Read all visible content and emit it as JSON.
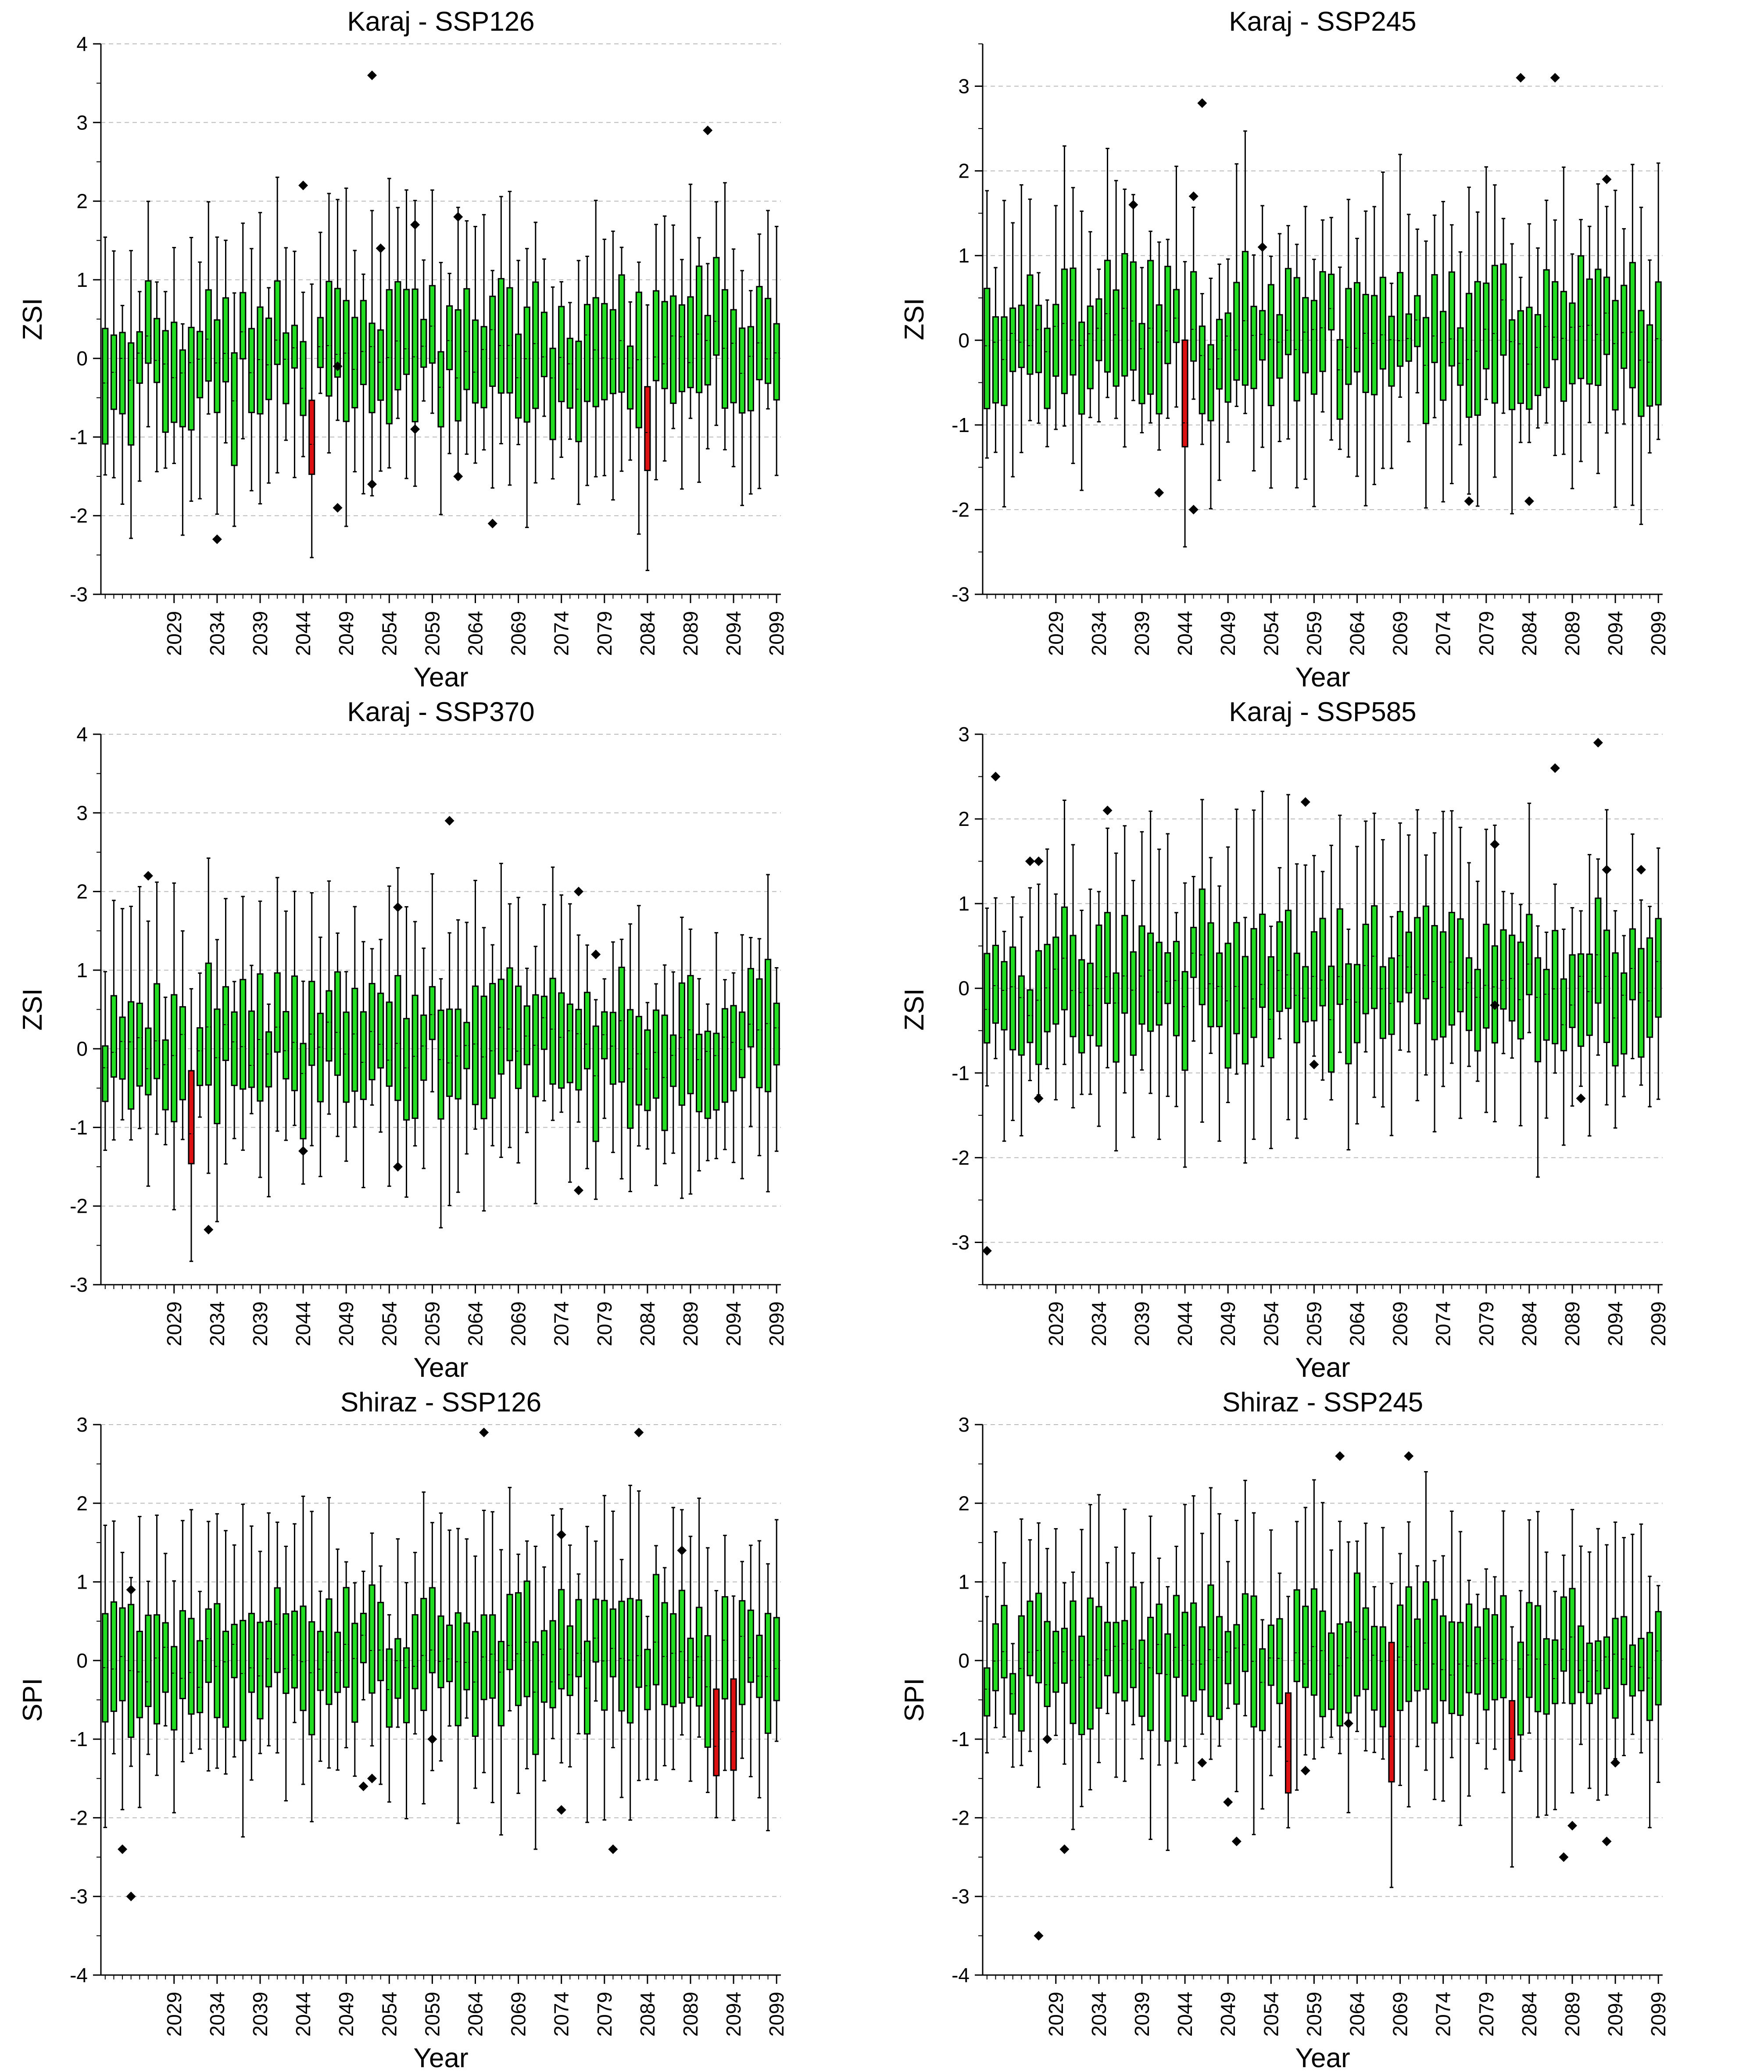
{
  "figure": {
    "panel_count": 6,
    "layout": "3 rows x 2 columns of box-and-whisker charts, one box per year"
  },
  "chart_data": [
    {
      "type": "box",
      "id": "karaj-ssp126",
      "title": "Karaj - SSP126",
      "xlabel": "Year",
      "ylabel": "ZSI",
      "ylim": [
        -3,
        4
      ],
      "yticks": [
        -3,
        -2,
        -1,
        0,
        1,
        2,
        3,
        4
      ],
      "x_range": [
        2021,
        2099
      ],
      "xticks": [
        "2029",
        "2034",
        "2039",
        "2044",
        "2049",
        "2054",
        "2059",
        "2064",
        "2069",
        "2074",
        "2079",
        "2084",
        "2089",
        "2094",
        "2099"
      ],
      "grid": "horizontal dashed",
      "box_color": "#22dd22",
      "highlight_color": "#dd1111",
      "highlight_years": [
        2045,
        2084
      ],
      "outliers": [
        [
          2034,
          -2.3
        ],
        [
          2044,
          2.2
        ],
        [
          2048,
          -0.1
        ],
        [
          2048,
          -1.9
        ],
        [
          2052,
          3.6
        ],
        [
          2052,
          -1.6
        ],
        [
          2053,
          1.4
        ],
        [
          2057,
          -0.9
        ],
        [
          2057,
          1.7
        ],
        [
          2062,
          1.8
        ],
        [
          2062,
          -1.5
        ],
        [
          2066,
          -2.1
        ],
        [
          2091,
          2.9
        ]
      ],
      "series_profile": {
        "seed": 11,
        "mean": 0.02,
        "spread": 0.62
      }
    },
    {
      "type": "box",
      "id": "karaj-ssp245",
      "title": "Karaj - SSP245",
      "xlabel": "Year",
      "ylabel": "ZSI",
      "ylim": [
        -3,
        3.5
      ],
      "yticks": [
        -3,
        -2,
        -1,
        0,
        1,
        2,
        3
      ],
      "x_range": [
        2021,
        2099
      ],
      "xticks": [
        "2029",
        "2034",
        "2039",
        "2044",
        "2049",
        "2054",
        "2059",
        "2064",
        "2069",
        "2074",
        "2079",
        "2084",
        "2089",
        "2094",
        "2099"
      ],
      "grid": "horizontal dashed",
      "box_color": "#22dd22",
      "highlight_color": "#dd1111",
      "highlight_years": [
        2044
      ],
      "outliers": [
        [
          2038,
          1.6
        ],
        [
          2041,
          -1.8
        ],
        [
          2046,
          2.8
        ],
        [
          2045,
          1.7
        ],
        [
          2045,
          -2.0
        ],
        [
          2053,
          1.1
        ],
        [
          2077,
          -1.9
        ],
        [
          2083,
          3.1
        ],
        [
          2084,
          -1.9
        ],
        [
          2087,
          3.1
        ],
        [
          2093,
          1.9
        ]
      ],
      "series_profile": {
        "seed": 23,
        "mean": 0.03,
        "spread": 0.6
      }
    },
    {
      "type": "box",
      "id": "karaj-ssp370",
      "title": "Karaj - SSP370",
      "xlabel": "Year",
      "ylabel": "ZSI",
      "ylim": [
        -3,
        4
      ],
      "yticks": [
        -3,
        -2,
        -1,
        0,
        1,
        2,
        3,
        4
      ],
      "x_range": [
        2021,
        2099
      ],
      "xticks": [
        "2029",
        "2034",
        "2039",
        "2044",
        "2049",
        "2054",
        "2059",
        "2064",
        "2069",
        "2074",
        "2079",
        "2084",
        "2089",
        "2094",
        "2099"
      ],
      "grid": "horizontal dashed",
      "box_color": "#22dd22",
      "highlight_color": "#dd1111",
      "highlight_years": [
        2031
      ],
      "outliers": [
        [
          2026,
          2.2
        ],
        [
          2033,
          -2.3
        ],
        [
          2044,
          -1.3
        ],
        [
          2055,
          1.8
        ],
        [
          2055,
          -1.5
        ],
        [
          2061,
          2.9
        ],
        [
          2076,
          2.0
        ],
        [
          2076,
          -1.8
        ],
        [
          2078,
          1.2
        ]
      ],
      "series_profile": {
        "seed": 37,
        "mean": 0.05,
        "spread": 0.62
      }
    },
    {
      "type": "box",
      "id": "karaj-ssp585",
      "title": "Karaj - SSP585",
      "xlabel": "Year",
      "ylabel": "ZSI",
      "ylim": [
        -3.5,
        3
      ],
      "yticks": [
        -3,
        -2,
        -1,
        0,
        1,
        2,
        3
      ],
      "x_range": [
        2021,
        2099
      ],
      "xticks": [
        "2029",
        "2034",
        "2039",
        "2044",
        "2049",
        "2054",
        "2059",
        "2064",
        "2069",
        "2074",
        "2079",
        "2084",
        "2089",
        "2094",
        "2099"
      ],
      "grid": "horizontal dashed",
      "box_color": "#22dd22",
      "highlight_color": "#dd1111",
      "highlight_years": [],
      "outliers": [
        [
          2021,
          -3.1
        ],
        [
          2022,
          2.5
        ],
        [
          2026,
          1.5
        ],
        [
          2027,
          1.5
        ],
        [
          2027,
          -1.3
        ],
        [
          2035,
          2.1
        ],
        [
          2058,
          2.2
        ],
        [
          2059,
          -0.9
        ],
        [
          2080,
          1.7
        ],
        [
          2080,
          -0.2
        ],
        [
          2087,
          2.6
        ],
        [
          2090,
          -1.3
        ],
        [
          2092,
          2.9
        ],
        [
          2093,
          1.4
        ],
        [
          2097,
          1.4
        ]
      ],
      "series_profile": {
        "seed": 53,
        "mean": 0.04,
        "spread": 0.58
      }
    },
    {
      "type": "box",
      "id": "shiraz-ssp126",
      "title": "Shiraz - SSP126",
      "xlabel": "Year",
      "ylabel": "SPI",
      "ylim": [
        -4,
        3
      ],
      "yticks": [
        -4,
        -3,
        -2,
        -1,
        0,
        1,
        2,
        3
      ],
      "x_range": [
        2021,
        2099
      ],
      "xticks": [
        "2029",
        "2034",
        "2039",
        "2044",
        "2049",
        "2054",
        "2059",
        "2064",
        "2069",
        "2074",
        "2079",
        "2084",
        "2089",
        "2094",
        "2099"
      ],
      "grid": "horizontal dashed",
      "box_color": "#22dd22",
      "highlight_color": "#dd1111",
      "highlight_years": [
        2092,
        2094
      ],
      "outliers": [
        [
          2023,
          -2.4
        ],
        [
          2024,
          -3.0
        ],
        [
          2024,
          0.9
        ],
        [
          2051,
          -1.6
        ],
        [
          2052,
          -1.5
        ],
        [
          2059,
          -1.0
        ],
        [
          2065,
          2.9
        ],
        [
          2074,
          1.6
        ],
        [
          2074,
          -1.9
        ],
        [
          2080,
          -2.4
        ],
        [
          2083,
          2.9
        ],
        [
          2088,
          1.4
        ]
      ],
      "series_profile": {
        "seed": 71,
        "mean": 0.0,
        "spread": 0.62
      }
    },
    {
      "type": "box",
      "id": "shiraz-ssp245",
      "title": "Shiraz - SSP245",
      "xlabel": "Year",
      "ylabel": "SPI",
      "ylim": [
        -4,
        3
      ],
      "yticks": [
        -4,
        -3,
        -2,
        -1,
        0,
        1,
        2,
        3
      ],
      "x_range": [
        2021,
        2099
      ],
      "xticks": [
        "2029",
        "2034",
        "2039",
        "2044",
        "2049",
        "2054",
        "2059",
        "2064",
        "2069",
        "2074",
        "2079",
        "2084",
        "2089",
        "2094",
        "2099"
      ],
      "grid": "horizontal dashed",
      "box_color": "#22dd22",
      "highlight_color": "#dd1111",
      "highlight_years": [
        2056,
        2068,
        2082
      ],
      "outliers": [
        [
          2027,
          -3.5
        ],
        [
          2028,
          -1.0
        ],
        [
          2030,
          -2.4
        ],
        [
          2046,
          -1.3
        ],
        [
          2049,
          -1.8
        ],
        [
          2050,
          -2.3
        ],
        [
          2058,
          -1.4
        ],
        [
          2062,
          2.6
        ],
        [
          2063,
          -0.8
        ],
        [
          2070,
          2.6
        ],
        [
          2088,
          -2.5
        ],
        [
          2089,
          -2.1
        ],
        [
          2093,
          -2.3
        ],
        [
          2094,
          -1.3
        ]
      ],
      "series_profile": {
        "seed": 97,
        "mean": 0.0,
        "spread": 0.6
      }
    }
  ]
}
